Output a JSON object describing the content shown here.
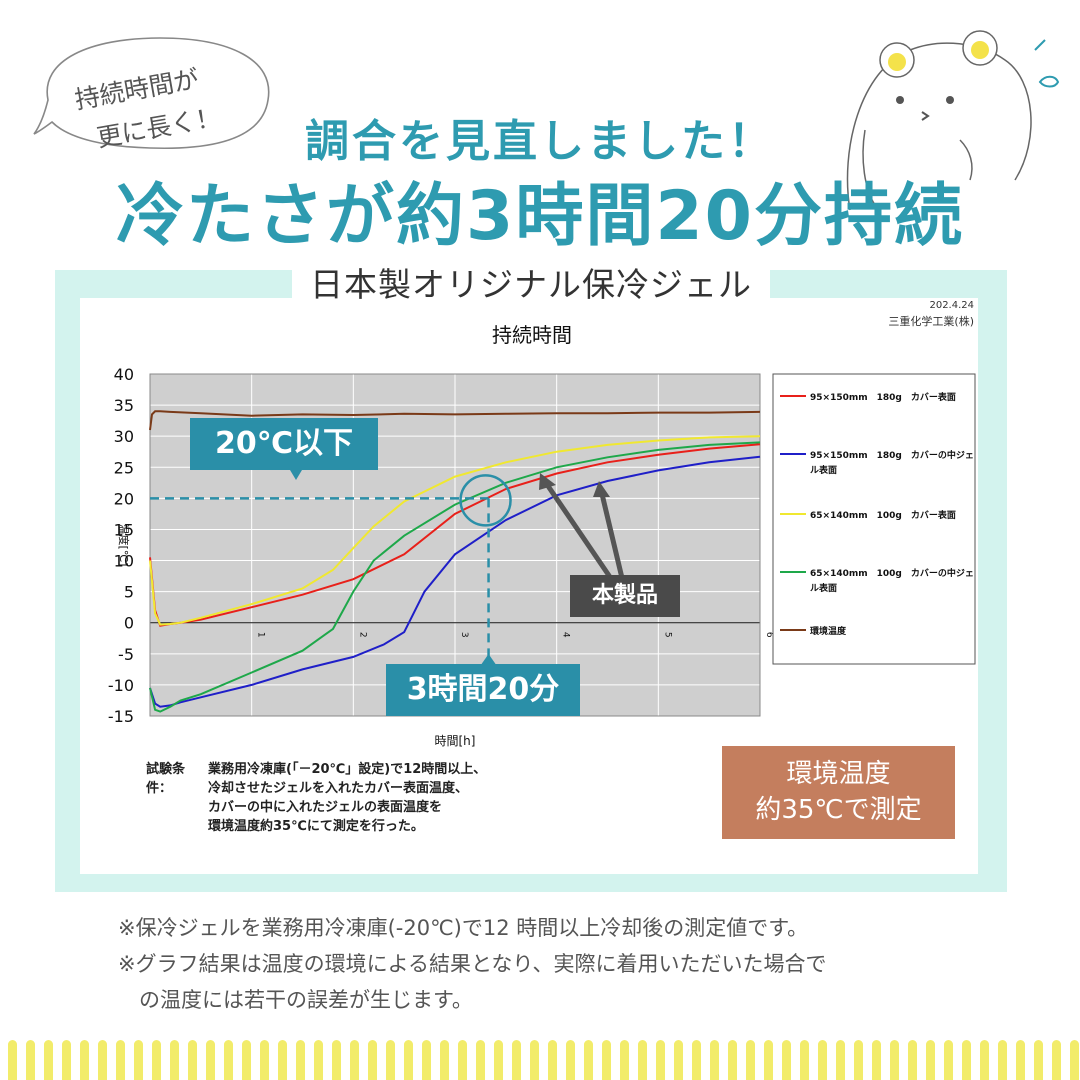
{
  "bubble": {
    "line1": "持続時間が",
    "line2": "更に長く！"
  },
  "heading": {
    "sub": "調合を見直しました！",
    "main": "冷たさが約3時間20分持続"
  },
  "gel_label": "日本製オリジナル保冷ジェル",
  "source": {
    "date": "202.4.24",
    "org": "三重化学工業(株)"
  },
  "callouts": {
    "temp": "20℃以下",
    "time": "3時間20分",
    "product": "本製品"
  },
  "conditions": {
    "label": "試験条件：",
    "lines": [
      "業務用冷凍庫(「－20℃」設定)で12時間以上、",
      "冷却させたジェルを入れたカバー表面温度、",
      "カバーの中に入れたジェルの表面温度を",
      "環境温度約35℃にて測定を行った。"
    ]
  },
  "env_box": {
    "line1": "環境温度",
    "line2": "約35℃で測定"
  },
  "notes": [
    "※保冷ジェルを業務用冷凍庫(-20℃)で12 時間以上冷却後の測定値です。",
    "※グラフ結果は温度の環境による結果となり、実際に着用いただいた場合で",
    "　の温度には若干の誤差が生じます。"
  ],
  "chart_data": {
    "type": "line",
    "title": "持続時間",
    "xlabel": "時間[h]",
    "ylabel": "温度[℃]",
    "xlim": [
      0,
      6
    ],
    "ylim": [
      -15,
      40
    ],
    "x_ticks": [
      1,
      2,
      3,
      4,
      5,
      6
    ],
    "y_ticks": [
      40,
      35,
      30,
      25,
      20,
      15,
      10,
      5,
      0,
      -5,
      -10,
      -15
    ],
    "legend_position": "right",
    "grid": true,
    "reference": {
      "x": 3.33,
      "y": 20
    },
    "series": [
      {
        "name": "95×150mm　180g　カバー表面",
        "color": "#e8201a",
        "x": [
          0,
          0.05,
          0.1,
          0.2,
          0.3,
          0.5,
          1.0,
          1.5,
          2.0,
          2.5,
          3.0,
          3.5,
          4.0,
          4.5,
          5.0,
          5.5,
          6.0
        ],
        "y": [
          10.5,
          2,
          -0.5,
          -0.2,
          0,
          0.5,
          2.5,
          4.5,
          7,
          11,
          17.5,
          21.5,
          24,
          25.8,
          27,
          28,
          28.7
        ]
      },
      {
        "name": "95×150mm　180g　カバーの中ジェル表面",
        "color": "#1f1fc8",
        "x": [
          0,
          0.05,
          0.1,
          0.2,
          0.3,
          0.5,
          1.0,
          1.5,
          2.0,
          2.3,
          2.5,
          2.7,
          3.0,
          3.5,
          4.0,
          4.5,
          5.0,
          5.5,
          6.0
        ],
        "y": [
          -10.5,
          -13,
          -13.5,
          -13.3,
          -12.8,
          -12,
          -10,
          -7.5,
          -5.5,
          -3.5,
          -1.5,
          5,
          11,
          16.5,
          20.5,
          22.8,
          24.5,
          25.8,
          26.7
        ]
      },
      {
        "name": "65×140mm　100g　カバー表面",
        "color": "#f0e830",
        "x": [
          0,
          0.05,
          0.1,
          0.2,
          0.3,
          0.5,
          1.0,
          1.5,
          1.8,
          2.0,
          2.2,
          2.5,
          3.0,
          3.5,
          4.0,
          4.5,
          5.0,
          5.5,
          6.0
        ],
        "y": [
          10,
          1.5,
          -0.3,
          -0.2,
          0,
          0.8,
          3,
          5.5,
          8.5,
          12,
          15.5,
          19.5,
          23.5,
          25.8,
          27.5,
          28.6,
          29.3,
          29.8,
          30
        ]
      },
      {
        "name": "65×140mm　100g　カバーの中ジェル表面",
        "color": "#1ea84a",
        "x": [
          0,
          0.05,
          0.1,
          0.2,
          0.3,
          0.5,
          1.0,
          1.5,
          1.8,
          2.0,
          2.2,
          2.5,
          3.0,
          3.5,
          4.0,
          4.5,
          5.0,
          5.5,
          6.0
        ],
        "y": [
          -10.5,
          -14,
          -14.3,
          -13.5,
          -12.5,
          -11.5,
          -8,
          -4.5,
          -1,
          5,
          10,
          14,
          19,
          22.5,
          25,
          26.6,
          27.8,
          28.6,
          29
        ]
      },
      {
        "name": "環境温度",
        "color": "#7a3a18",
        "x": [
          0,
          0.02,
          0.05,
          0.1,
          0.2,
          0.5,
          1.0,
          1.5,
          2.0,
          2.5,
          3.0,
          3.5,
          4.0,
          4.5,
          5.0,
          5.5,
          6.0
        ],
        "y": [
          31,
          33.5,
          34,
          34,
          33.9,
          33.7,
          33.3,
          33.5,
          33.4,
          33.6,
          33.5,
          33.6,
          33.7,
          33.7,
          33.8,
          33.8,
          33.9
        ]
      }
    ]
  }
}
